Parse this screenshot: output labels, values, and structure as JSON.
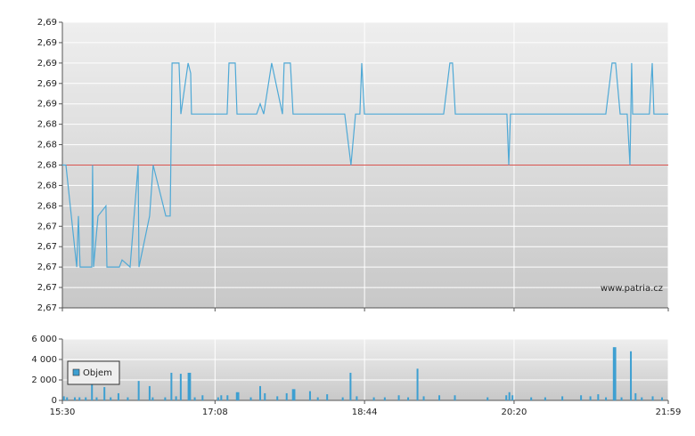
{
  "chart_data": [
    {
      "type": "line",
      "color": "#4fa9d6",
      "ylim": [
        2.666,
        2.694
      ],
      "yticks": [
        {
          "value": 2.694,
          "label": "2,69"
        },
        {
          "value": 2.692,
          "label": "2,69"
        },
        {
          "value": 2.69,
          "label": "2,69"
        },
        {
          "value": 2.688,
          "label": "2,69"
        },
        {
          "value": 2.686,
          "label": "2,69"
        },
        {
          "value": 2.684,
          "label": "2,68"
        },
        {
          "value": 2.682,
          "label": "2,68"
        },
        {
          "value": 2.68,
          "label": "2,68"
        },
        {
          "value": 2.678,
          "label": "2,68"
        },
        {
          "value": 2.676,
          "label": "2,68"
        },
        {
          "value": 2.674,
          "label": "2,67"
        },
        {
          "value": 2.672,
          "label": "2,67"
        },
        {
          "value": 2.67,
          "label": "2,67"
        },
        {
          "value": 2.668,
          "label": "2,67"
        },
        {
          "value": 2.666,
          "label": "2,67"
        }
      ],
      "xlim": [
        930,
        1319
      ],
      "reference_line": 2.68,
      "reference_color": "#d9534f",
      "annotation": "www.patria.cz",
      "grid": true,
      "x": [
        930,
        932.3,
        939.2,
        940.3,
        941.4,
        948.9,
        949.4,
        950,
        952.9,
        958,
        958.6,
        966.6,
        968.3,
        973.5,
        978.6,
        979.2,
        986,
        988.3,
        996.4,
        999.2,
        1000.4,
        1004.9,
        1006.1,
        1010.7,
        1012.4,
        1012.9,
        1035.8,
        1037,
        1041,
        1042.1,
        1054.7,
        1057,
        1059.3,
        1064.4,
        1071.3,
        1072.4,
        1076.4,
        1078.1,
        1111.3,
        1115.3,
        1118.2,
        1121,
        1122.2,
        1123.9,
        1174.8,
        1178.8,
        1180.5,
        1182.3,
        1215.4,
        1216.6,
        1217.7,
        1278.9,
        1282.9,
        1285.2,
        1288.1,
        1292.6,
        1294.4,
        1295.5,
        1296.1,
        1306.9,
        1308.7,
        1309.8,
        1319
      ],
      "values": [
        2.68,
        2.68,
        2.67,
        2.675,
        2.67,
        2.67,
        2.68,
        2.67,
        2.675,
        2.676,
        2.67,
        2.67,
        2.6707,
        2.67,
        2.68,
        2.67,
        2.675,
        2.68,
        2.675,
        2.675,
        2.69,
        2.69,
        2.685,
        2.69,
        2.689,
        2.685,
        2.685,
        2.69,
        2.69,
        2.685,
        2.685,
        2.686,
        2.685,
        2.69,
        2.685,
        2.69,
        2.69,
        2.685,
        2.685,
        2.68,
        2.685,
        2.685,
        2.69,
        2.685,
        2.685,
        2.69,
        2.69,
        2.685,
        2.685,
        2.68,
        2.685,
        2.685,
        2.69,
        2.69,
        2.685,
        2.685,
        2.68,
        2.69,
        2.685,
        2.685,
        2.69,
        2.685,
        2.685
      ]
    },
    {
      "type": "bar",
      "ylim": [
        0,
        6000
      ],
      "yticks": [
        {
          "value": 0,
          "label": "0"
        },
        {
          "value": 2000,
          "label": "2 000"
        },
        {
          "value": 4000,
          "label": "4 000"
        },
        {
          "value": 6000,
          "label": "6 000"
        }
      ],
      "xlim": [
        930,
        1319
      ],
      "xticks": [
        {
          "value": 930,
          "label": "15:30"
        },
        {
          "value": 1028,
          "label": "17:08"
        },
        {
          "value": 1124,
          "label": "18:44"
        },
        {
          "value": 1220,
          "label": "20:20"
        },
        {
          "value": 1319,
          "label": "21:59"
        }
      ],
      "legend": "upper left",
      "grid": true,
      "x": [
        931,
        933,
        938,
        941,
        945,
        949,
        952,
        957,
        961,
        966,
        972,
        979,
        986,
        988,
        996,
        1000,
        1003,
        1006,
        1011,
        1012,
        1015,
        1020,
        1030,
        1032,
        1036,
        1042,
        1043,
        1051,
        1057,
        1060,
        1068,
        1074,
        1078,
        1079,
        1089,
        1094,
        1100,
        1110,
        1115,
        1119,
        1130,
        1137,
        1146,
        1152,
        1158,
        1162,
        1172,
        1182,
        1203,
        1215,
        1217,
        1219,
        1231,
        1240,
        1251,
        1263,
        1269,
        1274,
        1279,
        1284,
        1285,
        1289,
        1295,
        1298,
        1302,
        1309,
        1315
      ],
      "series": [
        {
          "name": "Objem",
          "color": "#3d9fd1",
          "values": [
            400,
            300,
            300,
            300,
            300,
            2000,
            300,
            1300,
            300,
            700,
            300,
            1900,
            1400,
            300,
            300,
            2700,
            400,
            2600,
            2700,
            2700,
            300,
            500,
            300,
            500,
            500,
            800,
            800,
            300,
            1400,
            700,
            400,
            700,
            1100,
            1100,
            900,
            300,
            600,
            300,
            2700,
            400,
            300,
            300,
            500,
            300,
            3100,
            400,
            500,
            500,
            300,
            500,
            800,
            500,
            300,
            300,
            400,
            500,
            400,
            600,
            300,
            5200,
            5200,
            300,
            4800,
            700,
            300,
            400,
            300
          ]
        }
      ]
    }
  ]
}
